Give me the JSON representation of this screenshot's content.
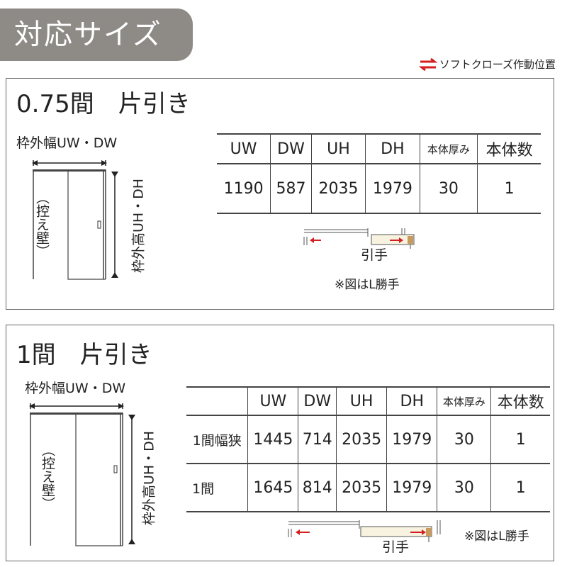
{
  "badge": "対応サイズ",
  "legend": {
    "text": "ソフトクローズ作動位置",
    "icon": "double-arrow-icon",
    "color": "#d21f1f"
  },
  "sections": [
    {
      "title": "0.75間　片引き",
      "width_label": "枠外幅UW・DW",
      "height_label": "枠外高UH・DH",
      "wall_label": "（控え壁）",
      "headers": [
        "UW",
        "DW",
        "UH",
        "DH",
        "本体厚み",
        "本体数"
      ],
      "rows": [
        [
          "1190",
          "587",
          "2035",
          "1979",
          "30",
          "1"
        ]
      ],
      "handle_label": "引手",
      "note": "※図はL勝手"
    },
    {
      "title": "1間　片引き",
      "width_label": "枠外幅UW・DW",
      "height_label": "枠外高UH・DH",
      "wall_label": "（控え壁）",
      "headers": [
        "",
        "UW",
        "DW",
        "UH",
        "DH",
        "本体厚み",
        "本体数"
      ],
      "rows": [
        [
          "1間幅狭",
          "1445",
          "714",
          "2035",
          "1979",
          "30",
          "1"
        ],
        [
          "1間",
          "1645",
          "814",
          "2035",
          "1979",
          "30",
          "1"
        ]
      ],
      "handle_label": "引手",
      "note": "※図はL勝手"
    }
  ]
}
